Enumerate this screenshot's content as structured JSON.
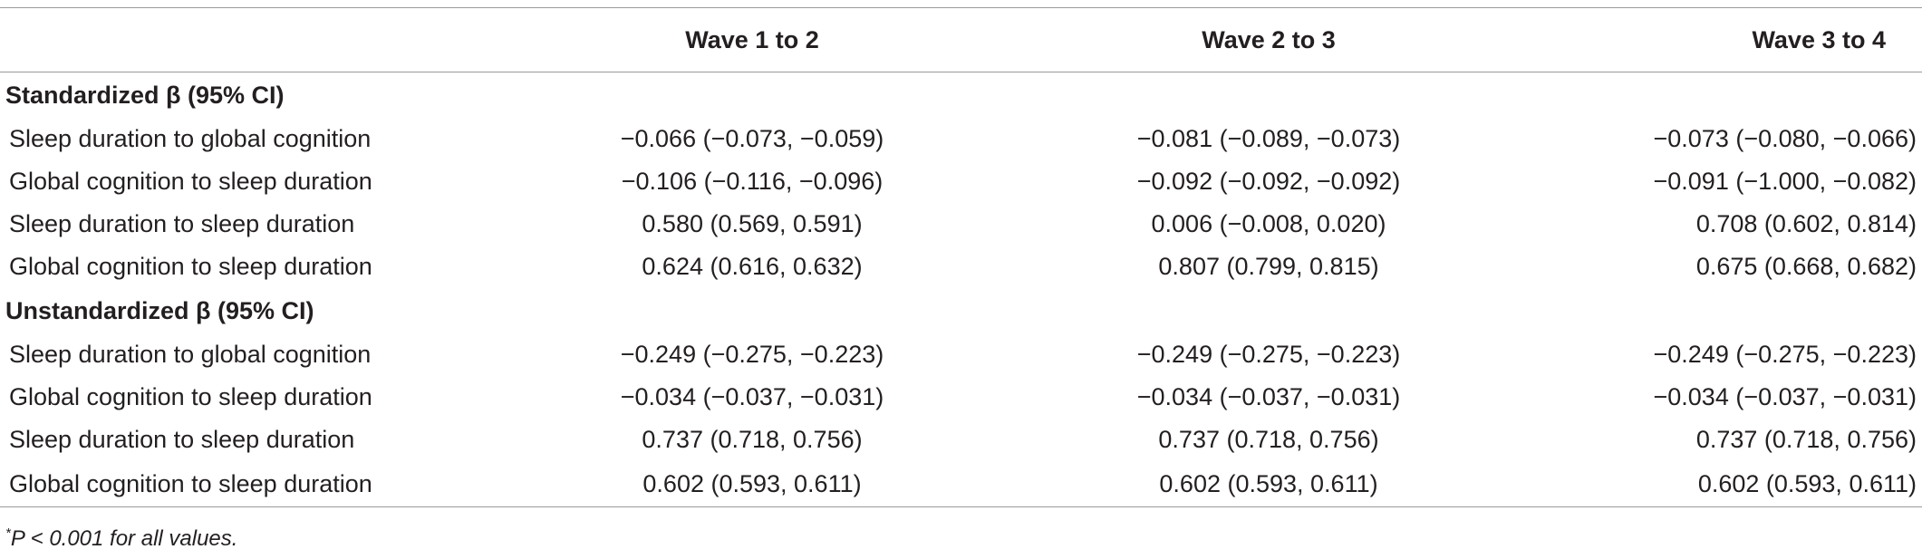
{
  "header": {
    "col_label": "",
    "col_wave1": "Wave 1 to 2",
    "col_wave2": "Wave 2 to 3",
    "col_wave3": "Wave 3 to 4"
  },
  "sections": [
    {
      "title": "Standardized β (95% CI)",
      "rows": [
        {
          "label": "Sleep duration to global cognition",
          "w1": "−0.066 (−0.073, −0.059)",
          "w2": "−0.081 (−0.089, −0.073)",
          "w3": "−0.073 (−0.080, −0.066)"
        },
        {
          "label": "Global cognition to sleep duration",
          "w1": "−0.106 (−0.116, −0.096)",
          "w2": "−0.092 (−0.092, −0.092)",
          "w3": "−0.091 (−1.000, −0.082)"
        },
        {
          "label": "Sleep duration to sleep duration",
          "w1": "0.580 (0.569, 0.591)",
          "w2": "0.006 (−0.008, 0.020)",
          "w3": "0.708 (0.602, 0.814)"
        },
        {
          "label": "Global cognition to sleep duration",
          "w1": "0.624 (0.616, 0.632)",
          "w2": "0.807 (0.799, 0.815)",
          "w3": "0.675 (0.668, 0.682)"
        }
      ]
    },
    {
      "title": "Unstandardized β (95% CI)",
      "rows": [
        {
          "label": "Sleep duration to global cognition",
          "w1": "−0.249 (−0.275, −0.223)",
          "w2": "−0.249 (−0.275, −0.223)",
          "w3": "−0.249 (−0.275, −0.223)"
        },
        {
          "label": "Global cognition to sleep duration",
          "w1": "−0.034 (−0.037, −0.031)",
          "w2": "−0.034 (−0.037, −0.031)",
          "w3": "−0.034 (−0.037, −0.031)"
        },
        {
          "label": "Sleep duration to sleep duration",
          "w1": "0.737 (0.718, 0.756)",
          "w2": "0.737 (0.718, 0.756)",
          "w3": "0.737 (0.718, 0.756)"
        },
        {
          "label": "Global cognition to sleep duration",
          "w1": "0.602 (0.593, 0.611)",
          "w2": "0.602 (0.593, 0.611)",
          "w3": "0.602 (0.593, 0.611)"
        }
      ]
    }
  ],
  "footnote": {
    "mark": "*",
    "text": "P < 0.001 for all values."
  }
}
